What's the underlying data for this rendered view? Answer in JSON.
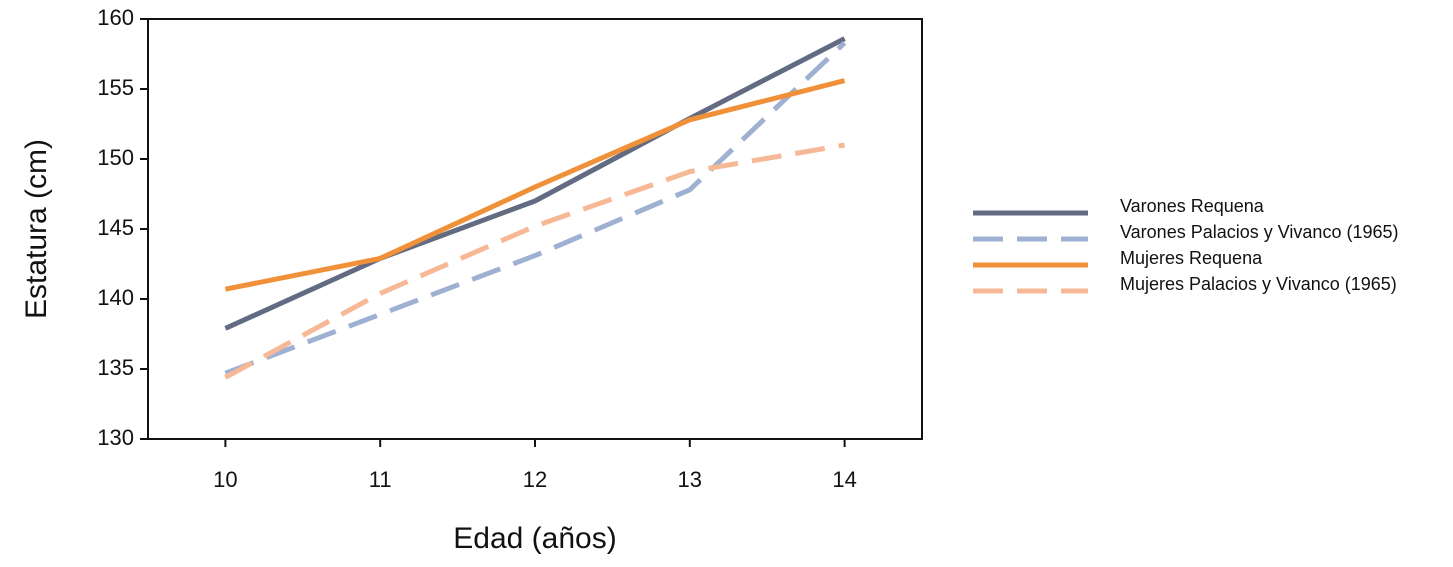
{
  "chart_data": {
    "type": "line",
    "x_label": "Edad  (años)",
    "y_label": "Estatura  (cm)",
    "x": [
      10,
      11,
      12,
      13,
      14
    ],
    "xlim": [
      9.5,
      14.5
    ],
    "xticks": [
      10,
      11,
      12,
      13,
      14
    ],
    "ylim": [
      130,
      160
    ],
    "yticks": [
      130,
      135,
      140,
      145,
      150,
      155,
      160
    ],
    "legend": "right",
    "series": [
      {
        "name": "Varones Requena",
        "color": "#636b82",
        "dashed": false,
        "values": [
          137.9,
          142.9,
          147.0,
          152.9,
          158.6
        ]
      },
      {
        "name": "Varones Palacios y Vivanco (1965)",
        "color": "#9fb1d3",
        "dashed": true,
        "values": [
          134.7,
          138.9,
          143.1,
          147.8,
          158.3
        ]
      },
      {
        "name": "Mujeres Requena",
        "color": "#f0913a",
        "dashed": false,
        "values": [
          140.7,
          142.9,
          148.0,
          152.8,
          155.6
        ]
      },
      {
        "name": "Mujeres Palacios y Vivanco (1965)",
        "color": "#f7b896",
        "dashed": true,
        "values": [
          134.4,
          140.4,
          145.2,
          149.1,
          151.0
        ]
      }
    ]
  }
}
